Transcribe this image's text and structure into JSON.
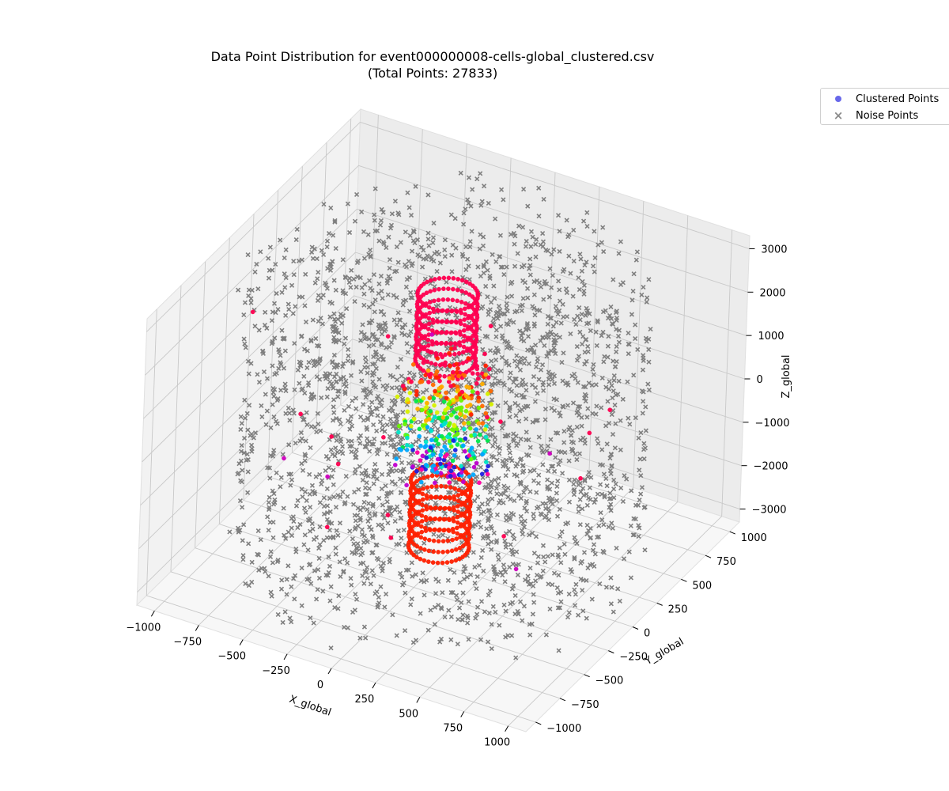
{
  "chart_data": {
    "type": "scatter",
    "projection": "3d",
    "title": "Data Point Distribution for event000000008-cells-global_clustered.csv",
    "subtitle": "(Total Points: 27833)",
    "xlabel": "X_global",
    "ylabel": "Y_global",
    "zlabel": "Z_global",
    "xlim": [
      -1100,
      1100
    ],
    "ylim": [
      -1100,
      1100
    ],
    "zlim": [
      -3300,
      3300
    ],
    "xticks": [
      -1000,
      -750,
      -500,
      -250,
      0,
      250,
      500,
      750,
      1000
    ],
    "yticks": [
      -1000,
      -750,
      -500,
      -250,
      0,
      250,
      500,
      750,
      1000
    ],
    "zticks": [
      -3000,
      -2000,
      -1000,
      0,
      1000,
      2000,
      3000
    ],
    "grid": true,
    "legend_position": "top-right",
    "series": [
      {
        "name": "Clustered Points",
        "marker": "o",
        "color": "#4d4de6",
        "structure": "inner cylinder of rings, radius ~150, z from -3000 to 3000; outer scattered points radius ~700–1000",
        "ring_radius": 150,
        "ring_z_values": [
          -2900,
          -2650,
          -2400,
          -2150,
          -1900,
          -1650,
          -1400,
          1400,
          1650,
          1900,
          2150,
          2400,
          2650,
          2900
        ],
        "core_z_range": [
          -1300,
          1300
        ],
        "cluster_colors": [
          "#ff0050",
          "#ff2000",
          "#ff6a00",
          "#ffae00",
          "#d9f200",
          "#6cf500",
          "#00e84a",
          "#00e6c8",
          "#00a8ff",
          "#2020e0",
          "#c000d0",
          "#ff00a0"
        ]
      },
      {
        "name": "Noise Points",
        "marker": "x",
        "color": "#7f7f7f",
        "structure": "barrel layers at radii ~250, 400, 550, 700, 850, 1000 spanning z -2600 to 2600; endcap disks at z ~ ±2700 to ±3100",
        "barrel_radii": [
          250,
          400,
          550,
          700,
          850,
          1000
        ],
        "barrel_z_range": [
          -2600,
          2600
        ],
        "endcap_z_values": [
          -3100,
          -2900,
          -2700,
          2700,
          2900,
          3100
        ],
        "endcap_radius_range": [
          300,
          1050
        ]
      }
    ]
  }
}
